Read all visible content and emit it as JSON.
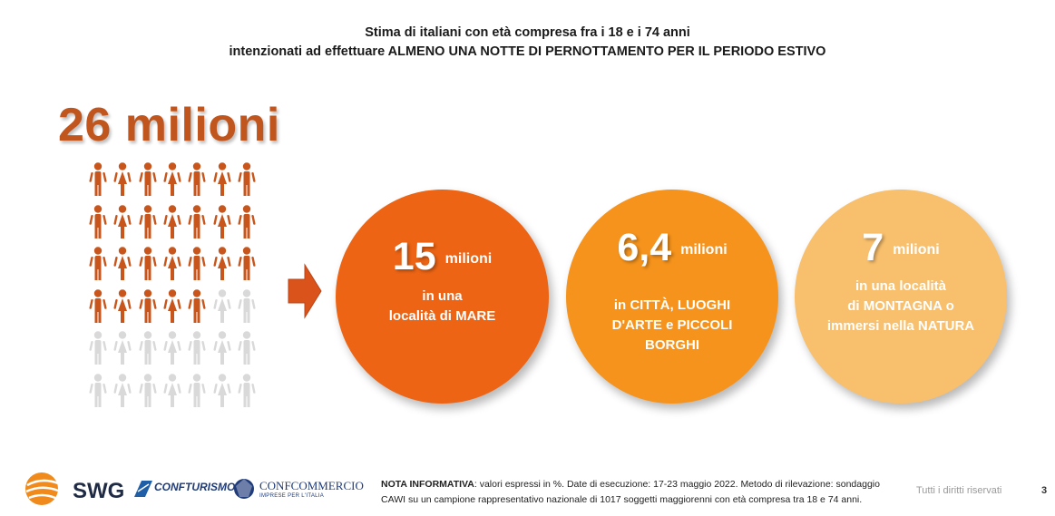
{
  "header": {
    "title_line1": "Stima di italiani con età compresa fra i 18 e i 74 anni",
    "title_line2": "intenzionati ad effettuare ALMENO UNA NOTTE DI PERNOTTAMENTO PER IL PERIODO ESTIVO"
  },
  "total": {
    "label": "26 milioni",
    "people_filled": 26,
    "people_total": 42,
    "filled_color": "#c8561c",
    "empty_color": "#d9d9d9"
  },
  "circles": [
    {
      "number": "15",
      "unit": "milioni",
      "text_lines": [
        "in una",
        "località di MARE"
      ],
      "color": "#ec6414"
    },
    {
      "number": "6,4",
      "unit": "milioni",
      "text_lines": [
        "in CITTÀ, LUOGHI",
        "D'ARTE e PICCOLI",
        "BORGHI"
      ],
      "color": "#f5931c"
    },
    {
      "number": "7",
      "unit": "milioni",
      "text_lines": [
        "in una località",
        "di MONTAGNA o",
        "immersi nella NATURA"
      ],
      "color": "#f8bf6c"
    }
  ],
  "footer": {
    "logo_swg": "SWG",
    "logo_conf": "CONFTURISMO",
    "logo_concom": "CONFCOMMERCIO",
    "logo_concom_sub": "IMPRESE PER L'ITALIA",
    "note_label": "NOTA INFORMATIVA",
    "note_text": ": valori espressi in %. Date di esecuzione: 17-23 maggio 2022. Metodo di rilevazione: sondaggio CAWI su un campione rappresentativo nazionale di 1017 soggetti maggiorenni con età compresa tra 18 e 74 anni.",
    "rights": "Tutti i diritti riservati",
    "page_number": "3"
  }
}
